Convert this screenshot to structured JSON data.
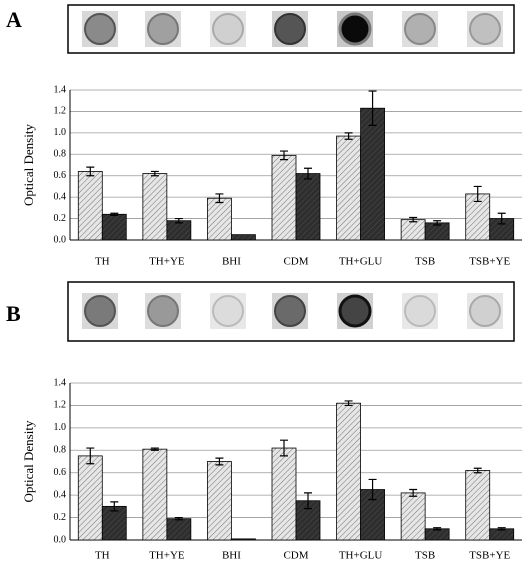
{
  "chart_data": [
    {
      "type": "bar",
      "panel_label": "A",
      "ylabel": "Optical Density",
      "categories": [
        "TH",
        "TH+YE",
        "BHI",
        "CDM",
        "TH+GLU",
        "TSB",
        "TSB+YE"
      ],
      "series": [
        {
          "color": "#e6e6e6",
          "values": [
            0.64,
            0.62,
            0.39,
            0.79,
            0.97,
            0.19,
            0.43
          ],
          "errors": [
            0.04,
            0.02,
            0.04,
            0.04,
            0.03,
            0.02,
            0.07
          ]
        },
        {
          "color": "#2e2e2e",
          "values": [
            0.24,
            0.18,
            0.05,
            0.62,
            1.23,
            0.16,
            0.2
          ],
          "errors": [
            0.01,
            0.02,
            0,
            0.05,
            0.16,
            0.02,
            0.05
          ]
        }
      ],
      "ylim": [
        0,
        1.4
      ],
      "yticks": [
        {
          "value": 0,
          "label": "0.0"
        },
        0.2,
        0.4,
        0.6,
        0.8,
        {
          "value": 1,
          "label": "1.0"
        },
        1.2,
        1.4
      ],
      "grid": true
    },
    {
      "type": "bar",
      "panel_label": "B",
      "ylabel": "Optical Density",
      "categories": [
        "TH",
        "TH+YE",
        "BHI",
        "CDM",
        "TH+GLU",
        "TSB",
        "TSB+YE"
      ],
      "series": [
        {
          "color": "#e6e6e6",
          "values": [
            0.75,
            0.81,
            0.7,
            0.82,
            1.22,
            0.42,
            0.62
          ],
          "errors": [
            0.07,
            0.01,
            0.03,
            0.07,
            0.02,
            0.03,
            0.02
          ]
        },
        {
          "color": "#2e2e2e",
          "values": [
            0.3,
            0.19,
            0.01,
            0.35,
            0.45,
            0.1,
            0.1
          ],
          "errors": [
            0.04,
            0.01,
            0,
            0.07,
            0.09,
            0.01,
            0.01
          ]
        }
      ],
      "ylim": [
        0,
        1.4
      ],
      "yticks": [
        {
          "value": 0,
          "label": "0.0"
        },
        0.2,
        0.4,
        0.6,
        0.8,
        {
          "value": 1,
          "label": "1.0"
        },
        1.2,
        1.4
      ],
      "grid": true
    }
  ]
}
